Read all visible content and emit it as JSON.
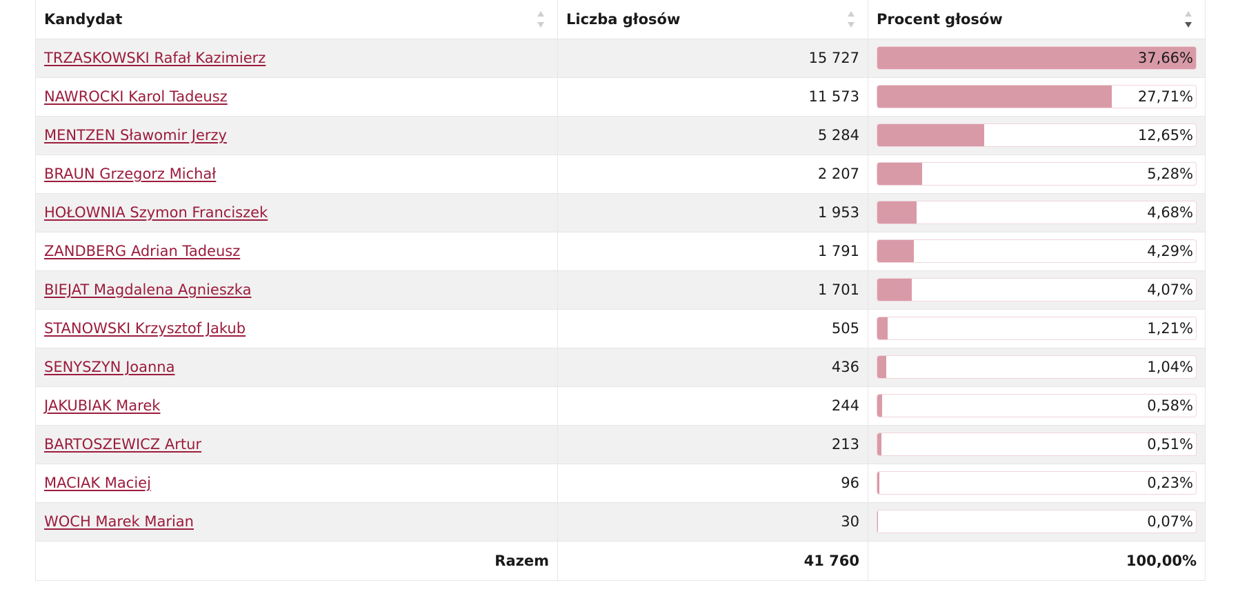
{
  "table": {
    "headers": {
      "candidate": "Kandydat",
      "votes": "Liczba głosów",
      "percent": "Procent głosów"
    },
    "rows": [
      {
        "name": "TRZASKOWSKI Rafał Kazimierz",
        "votes": "15 727",
        "percent": "37,66%",
        "share": 0.3766
      },
      {
        "name": "NAWROCKI Karol Tadeusz",
        "votes": "11 573",
        "percent": "27,71%",
        "share": 0.2771
      },
      {
        "name": "MENTZEN Sławomir Jerzy",
        "votes": "5 284",
        "percent": "12,65%",
        "share": 0.1265
      },
      {
        "name": "BRAUN Grzegorz Michał",
        "votes": "2 207",
        "percent": "5,28%",
        "share": 0.0528
      },
      {
        "name": "HOŁOWNIA Szymon Franciszek",
        "votes": "1 953",
        "percent": "4,68%",
        "share": 0.0468
      },
      {
        "name": "ZANDBERG Adrian Tadeusz",
        "votes": "1 791",
        "percent": "4,29%",
        "share": 0.0429
      },
      {
        "name": "BIEJAT Magdalena Agnieszka",
        "votes": "1 701",
        "percent": "4,07%",
        "share": 0.0407
      },
      {
        "name": "STANOWSKI Krzysztof Jakub",
        "votes": "505",
        "percent": "1,21%",
        "share": 0.0121
      },
      {
        "name": "SENYSZYN Joanna",
        "votes": "436",
        "percent": "1,04%",
        "share": 0.0104
      },
      {
        "name": "JAKUBIAK Marek",
        "votes": "244",
        "percent": "0,58%",
        "share": 0.0058
      },
      {
        "name": "BARTOSZEWICZ Artur",
        "votes": "213",
        "percent": "0,51%",
        "share": 0.0051
      },
      {
        "name": "MACIAK Maciej",
        "votes": "96",
        "percent": "0,23%",
        "share": 0.0023
      },
      {
        "name": "WOCH Marek Marian",
        "votes": "30",
        "percent": "0,07%",
        "share": 0.0007
      }
    ],
    "bar_scale_max": 0.3766,
    "footer": {
      "label": "Razem",
      "votes": "41 760",
      "percent": "100,00%"
    },
    "sort": {
      "candidate": "none",
      "votes": "none",
      "percent": "descending"
    }
  },
  "colors": {
    "link": "#9b1b3c",
    "bar_fill": "#d99aa8",
    "bar_border": "#f0d4da",
    "row_stripe": "#f1f1f1"
  },
  "icons": {
    "sort_unsorted": "sort-both-icon",
    "sort_desc": "sort-desc-icon"
  }
}
